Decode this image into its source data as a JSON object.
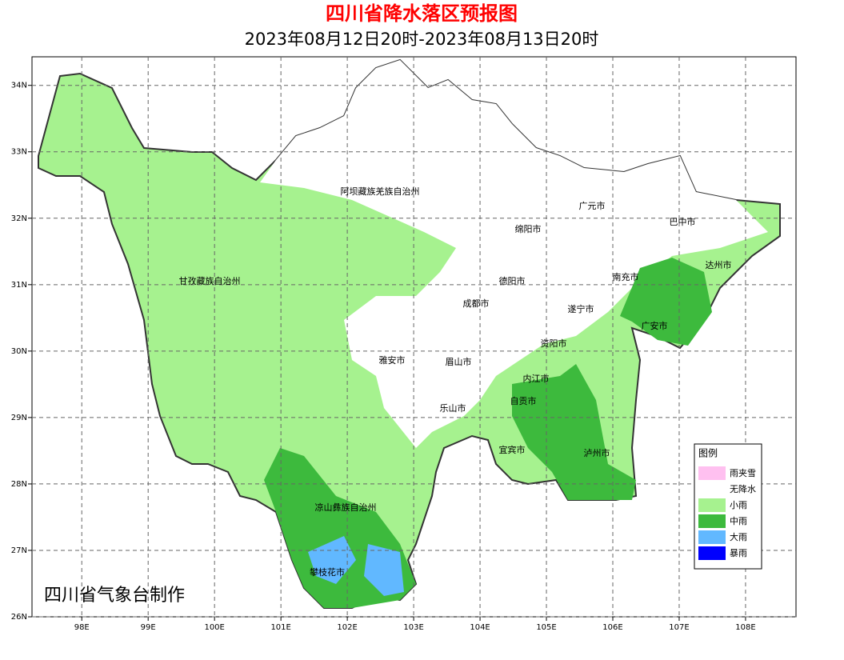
{
  "header": {
    "title": "四川省降水落区预报图",
    "subtitle": "2023年08月12日20时-2023年08月13日20时"
  },
  "map": {
    "xlim": [
      97.25,
      108.76
    ],
    "ylim": [
      26,
      34.43
    ],
    "xticks": [
      {
        "value": 98,
        "label": "98E"
      },
      {
        "value": 99,
        "label": "99E"
      },
      {
        "value": 100,
        "label": "100E"
      },
      {
        "value": 101,
        "label": "101E"
      },
      {
        "value": 102,
        "label": "102E"
      },
      {
        "value": 103,
        "label": "103E"
      },
      {
        "value": 104,
        "label": "104E"
      },
      {
        "value": 105,
        "label": "105E"
      },
      {
        "value": 106,
        "label": "106E"
      },
      {
        "value": 107,
        "label": "107E"
      },
      {
        "value": 108,
        "label": "108E"
      }
    ],
    "yticks": [
      {
        "value": 26,
        "label": "26N"
      },
      {
        "value": 27,
        "label": "27N"
      },
      {
        "value": 28,
        "label": "28N"
      },
      {
        "value": 29,
        "label": "29N"
      },
      {
        "value": 30,
        "label": "30N"
      },
      {
        "value": 31,
        "label": "31N"
      },
      {
        "value": 32,
        "label": "32N"
      },
      {
        "value": 33,
        "label": "33N"
      },
      {
        "value": 34,
        "label": "34N"
      }
    ],
    "grid": true
  },
  "regions": [
    "阿坝藏族羌族自治州",
    "广元市",
    "巴中市",
    "绵阳市",
    "达州市",
    "德阳市",
    "南充市",
    "甘孜藏族自治州",
    "成都市",
    "遂宁市",
    "广安市",
    "资阳市",
    "雅安市",
    "眉山市",
    "内江市",
    "自贡市",
    "乐山市",
    "宜宾市",
    "泸州市",
    "凉山彝族自治州",
    "攀枝花市"
  ],
  "legend": {
    "title": "图例",
    "items": [
      {
        "label": "雨夹雪",
        "color": "#ffc0f0"
      },
      {
        "label": "无降水",
        "color": "#ffffff"
      },
      {
        "label": "小雨",
        "color": "#a6f28f"
      },
      {
        "label": "中雨",
        "color": "#3dba3d"
      },
      {
        "label": "大雨",
        "color": "#61b8ff"
      },
      {
        "label": "暴雨",
        "color": "#0000fe"
      }
    ]
  },
  "footer": "四川省气象台制作"
}
